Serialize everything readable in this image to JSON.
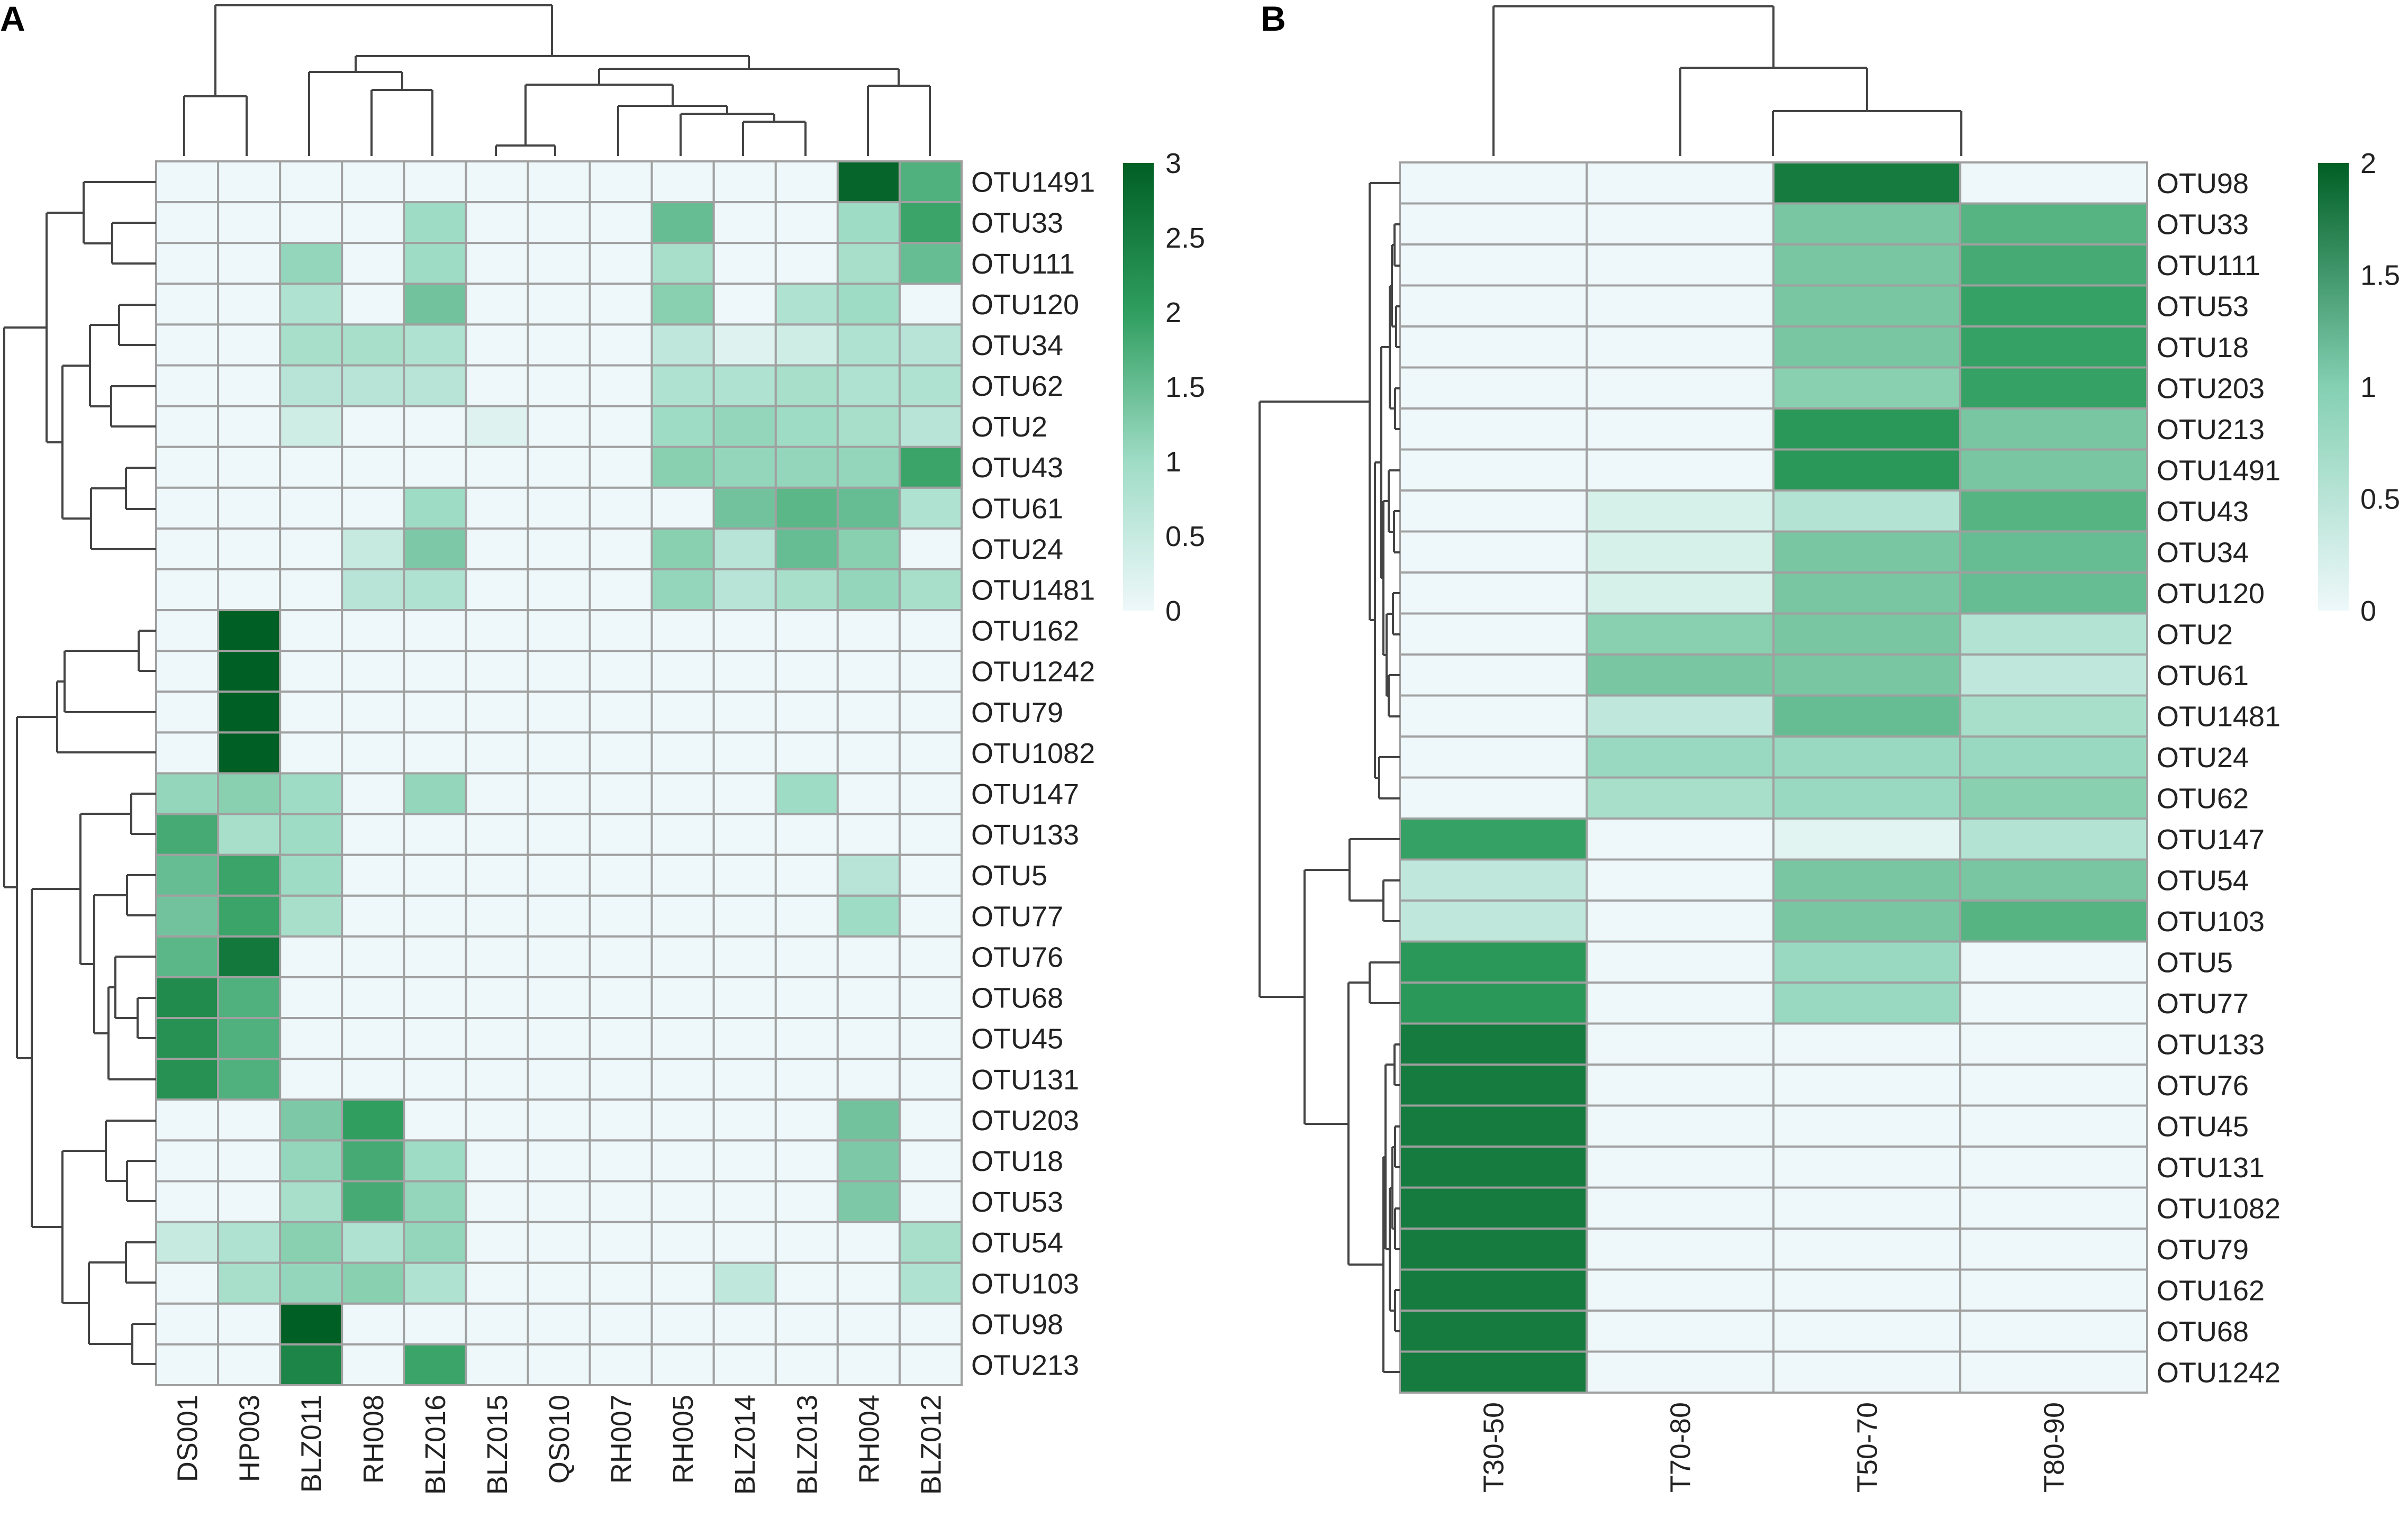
{
  "chart_data": [
    {
      "type": "heatmap",
      "panel": "A",
      "columns": [
        "DS001",
        "HP003",
        "BLZ011",
        "RH008",
        "BLZ016",
        "BLZ015",
        "QS010",
        "RH007",
        "RH005",
        "BLZ014",
        "BLZ013",
        "RH004",
        "BLZ012"
      ],
      "rows": [
        "OTU1491",
        "OTU33",
        "OTU111",
        "OTU120",
        "OTU34",
        "OTU62",
        "OTU2",
        "OTU43",
        "OTU61",
        "OTU24",
        "OTU1481",
        "OTU162",
        "OTU1242",
        "OTU79",
        "OTU1082",
        "OTU147",
        "OTU133",
        "OTU5",
        "OTU77",
        "OTU76",
        "OTU68",
        "OTU45",
        "OTU131",
        "OTU203",
        "OTU18",
        "OTU53",
        "OTU54",
        "OTU103",
        "OTU98",
        "OTU213"
      ],
      "values": [
        [
          0,
          0,
          0,
          0,
          0,
          0,
          0,
          0,
          0,
          0,
          0,
          2.9,
          1.7
        ],
        [
          0,
          0,
          0,
          0,
          1,
          0,
          0,
          0,
          1.5,
          0,
          0,
          1,
          1.9
        ],
        [
          0,
          0,
          1.1,
          0,
          1,
          0,
          0,
          0,
          0.9,
          0,
          0,
          0.9,
          1.5
        ],
        [
          0,
          0,
          0.8,
          0,
          1.4,
          0,
          0,
          0,
          1.2,
          0,
          0.8,
          1,
          0
        ],
        [
          0,
          0,
          0.9,
          0.9,
          0.8,
          0,
          0,
          0,
          0.6,
          0.2,
          0.4,
          0.8,
          0.7
        ],
        [
          0,
          0,
          0.7,
          0.7,
          0.7,
          0,
          0,
          0,
          0.8,
          0.8,
          0.9,
          0.8,
          0.8
        ],
        [
          0,
          0,
          0.4,
          0,
          0,
          0.2,
          0,
          0,
          1,
          1.1,
          1,
          0.9,
          0.7
        ],
        [
          0,
          0,
          0,
          0,
          0,
          0,
          0,
          0,
          1.2,
          1.1,
          1.1,
          1.1,
          1.9
        ],
        [
          0,
          0,
          0,
          0,
          1,
          0,
          0,
          0,
          0,
          1.4,
          1.6,
          1.5,
          0.8
        ],
        [
          0,
          0,
          0,
          0.5,
          1.3,
          0,
          0,
          0,
          1.2,
          0.7,
          1.5,
          1.2,
          0
        ],
        [
          0,
          0,
          0,
          0.7,
          0.8,
          0,
          0,
          0,
          1.1,
          0.7,
          0.9,
          1.1,
          0.9
        ],
        [
          0,
          3,
          0,
          0,
          0,
          0,
          0,
          0,
          0,
          0,
          0,
          0,
          0
        ],
        [
          0,
          3,
          0,
          0,
          0,
          0,
          0,
          0,
          0,
          0,
          0,
          0,
          0
        ],
        [
          0,
          3,
          0,
          0,
          0,
          0,
          0,
          0,
          0,
          0,
          0,
          0,
          0
        ],
        [
          0,
          3,
          0,
          0,
          0,
          0,
          0,
          0,
          0,
          0,
          0,
          0,
          0
        ],
        [
          1.1,
          1.2,
          1,
          0,
          1.1,
          0,
          0,
          0,
          0,
          0,
          1,
          0,
          0
        ],
        [
          1.8,
          0.9,
          1,
          0,
          0,
          0,
          0,
          0,
          0,
          0,
          0,
          0,
          0
        ],
        [
          1.5,
          1.9,
          1,
          0,
          0,
          0,
          0,
          0,
          0,
          0,
          0,
          0.7,
          0
        ],
        [
          1.4,
          1.9,
          0.9,
          0,
          0,
          0,
          0,
          0,
          0,
          0,
          0,
          1,
          0
        ],
        [
          1.6,
          2.6,
          0,
          0,
          0,
          0,
          0,
          0,
          0,
          0,
          0,
          0,
          0
        ],
        [
          2.3,
          1.7,
          0,
          0,
          0,
          0,
          0,
          0,
          0,
          0,
          0,
          0,
          0
        ],
        [
          2.2,
          1.7,
          0,
          0,
          0,
          0,
          0,
          0,
          0,
          0,
          0,
          0,
          0
        ],
        [
          2.2,
          1.7,
          0,
          0,
          0,
          0,
          0,
          0,
          0,
          0,
          0,
          0,
          0
        ],
        [
          0,
          0,
          1.3,
          2,
          0,
          0,
          0,
          0,
          0,
          0,
          0,
          1.4,
          0
        ],
        [
          0,
          0,
          1.1,
          1.8,
          1,
          0,
          0,
          0,
          0,
          0,
          0,
          1.3,
          0
        ],
        [
          0,
          0,
          0.9,
          1.8,
          1.1,
          0,
          0,
          0,
          0,
          0,
          0,
          1.3,
          0
        ],
        [
          0.5,
          0.8,
          1.2,
          0.8,
          1.1,
          0,
          0,
          0,
          0,
          0,
          0,
          0,
          0.9
        ],
        [
          0,
          0.9,
          1.1,
          1.2,
          0.8,
          0,
          0,
          0,
          0,
          0.6,
          0,
          0,
          0.8
        ],
        [
          0,
          0,
          3,
          0,
          0,
          0,
          0,
          0,
          0,
          0,
          0,
          0,
          0
        ],
        [
          0,
          0,
          2.4,
          0,
          1.9,
          0,
          0,
          0,
          0,
          0,
          0,
          0,
          0
        ]
      ],
      "colorbar": {
        "min": 0,
        "max": 3,
        "ticks": [
          "3",
          "2.5",
          "2",
          "1.5",
          "1",
          "0.5",
          "0"
        ],
        "low_color": "#eef8fa",
        "high_color": "#005f24"
      },
      "title": "",
      "xlabel": "",
      "ylabel": ""
    },
    {
      "type": "heatmap",
      "panel": "B",
      "columns": [
        "T30-50",
        "T70-80",
        "T50-70",
        "T80-90"
      ],
      "rows": [
        "OTU98",
        "OTU33",
        "OTU111",
        "OTU53",
        "OTU18",
        "OTU203",
        "OTU213",
        "OTU1491",
        "OTU43",
        "OTU34",
        "OTU120",
        "OTU2",
        "OTU61",
        "OTU1481",
        "OTU24",
        "OTU62",
        "OTU147",
        "OTU54",
        "OTU103",
        "OTU5",
        "OTU77",
        "OTU133",
        "OTU76",
        "OTU45",
        "OTU131",
        "OTU1082",
        "OTU79",
        "OTU162",
        "OTU68",
        "OTU1242"
      ],
      "values": [
        [
          0,
          0,
          1.7,
          0
        ],
        [
          0,
          0,
          0.9,
          1.1
        ],
        [
          0,
          0,
          0.9,
          1.2
        ],
        [
          0,
          0,
          0.9,
          1.3
        ],
        [
          0,
          0,
          0.9,
          1.3
        ],
        [
          0,
          0,
          0.8,
          1.3
        ],
        [
          0,
          0,
          1.4,
          0.9
        ],
        [
          0,
          0,
          1.4,
          0.9
        ],
        [
          0,
          0.2,
          0.5,
          1.1
        ],
        [
          0,
          0.2,
          0.9,
          1
        ],
        [
          0,
          0.2,
          0.9,
          1
        ],
        [
          0,
          0.8,
          0.9,
          0.5
        ],
        [
          0,
          0.9,
          0.9,
          0.4
        ],
        [
          0,
          0.4,
          1,
          0.6
        ],
        [
          0,
          0.7,
          0.7,
          0.7
        ],
        [
          0,
          0.6,
          0.7,
          0.8
        ],
        [
          1.3,
          0,
          0.1,
          0.5
        ],
        [
          0.4,
          0,
          0.9,
          0.9
        ],
        [
          0.4,
          0,
          0.9,
          1.1
        ],
        [
          1.4,
          0,
          0.7,
          0
        ],
        [
          1.4,
          0,
          0.7,
          0
        ],
        [
          1.7,
          0,
          0,
          0
        ],
        [
          1.7,
          0,
          0,
          0
        ],
        [
          1.7,
          0,
          0,
          0
        ],
        [
          1.7,
          0,
          0,
          0
        ],
        [
          1.7,
          0,
          0,
          0
        ],
        [
          1.7,
          0,
          0,
          0
        ],
        [
          1.7,
          0,
          0,
          0
        ],
        [
          1.7,
          0,
          0,
          0
        ],
        [
          1.7,
          0,
          0,
          0
        ]
      ],
      "colorbar": {
        "min": 0,
        "max": 2,
        "ticks": [
          "2",
          "1.5",
          "1",
          "0.5",
          "0"
        ],
        "low_color": "#eef8fa",
        "high_color": "#005f24"
      },
      "title": "",
      "xlabel": "",
      "ylabel": ""
    }
  ],
  "panels": {
    "a_label": "A",
    "b_label": "B"
  }
}
